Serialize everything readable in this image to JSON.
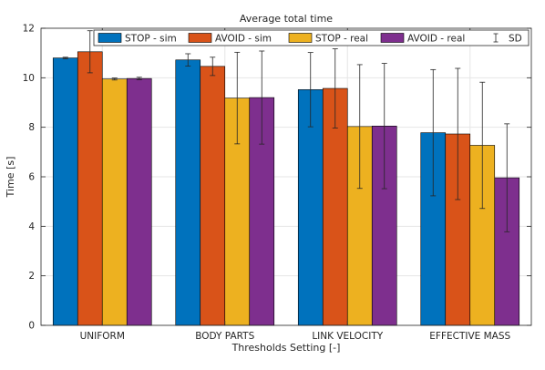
{
  "chart_data": {
    "type": "bar",
    "title": "Average total time",
    "xlabel": "Thresholds Setting [-]",
    "ylabel": "Time [s]",
    "ylim": [
      0,
      12
    ],
    "yticks": [
      0,
      2,
      4,
      6,
      8,
      10,
      12
    ],
    "grid": true,
    "legend_position": "top",
    "categories": [
      "UNIFORM",
      "BODY PARTS",
      "LINK VELOCITY",
      "EFFECTIVE MASS"
    ],
    "series": [
      {
        "name": "STOP - sim",
        "color": "#0072BD",
        "values": [
          10.8,
          10.72,
          9.52,
          7.78
        ],
        "sd": [
          0.03,
          0.25,
          1.5,
          2.55
        ]
      },
      {
        "name": "AVOID - sim",
        "color": "#D95319",
        "values": [
          11.05,
          10.46,
          9.57,
          7.73
        ],
        "sd": [
          0.85,
          0.37,
          1.6,
          2.65
        ]
      },
      {
        "name": "STOP - real",
        "color": "#EDB120",
        "values": [
          9.95,
          9.18,
          8.03,
          7.27
        ],
        "sd": [
          0.04,
          1.85,
          2.5,
          2.55
        ]
      },
      {
        "name": "AVOID - real",
        "color": "#7E2F8E",
        "values": [
          9.97,
          9.2,
          8.05,
          5.96
        ],
        "sd": [
          0.05,
          1.88,
          2.53,
          2.18
        ]
      }
    ],
    "sd_legend_label": "SD"
  }
}
